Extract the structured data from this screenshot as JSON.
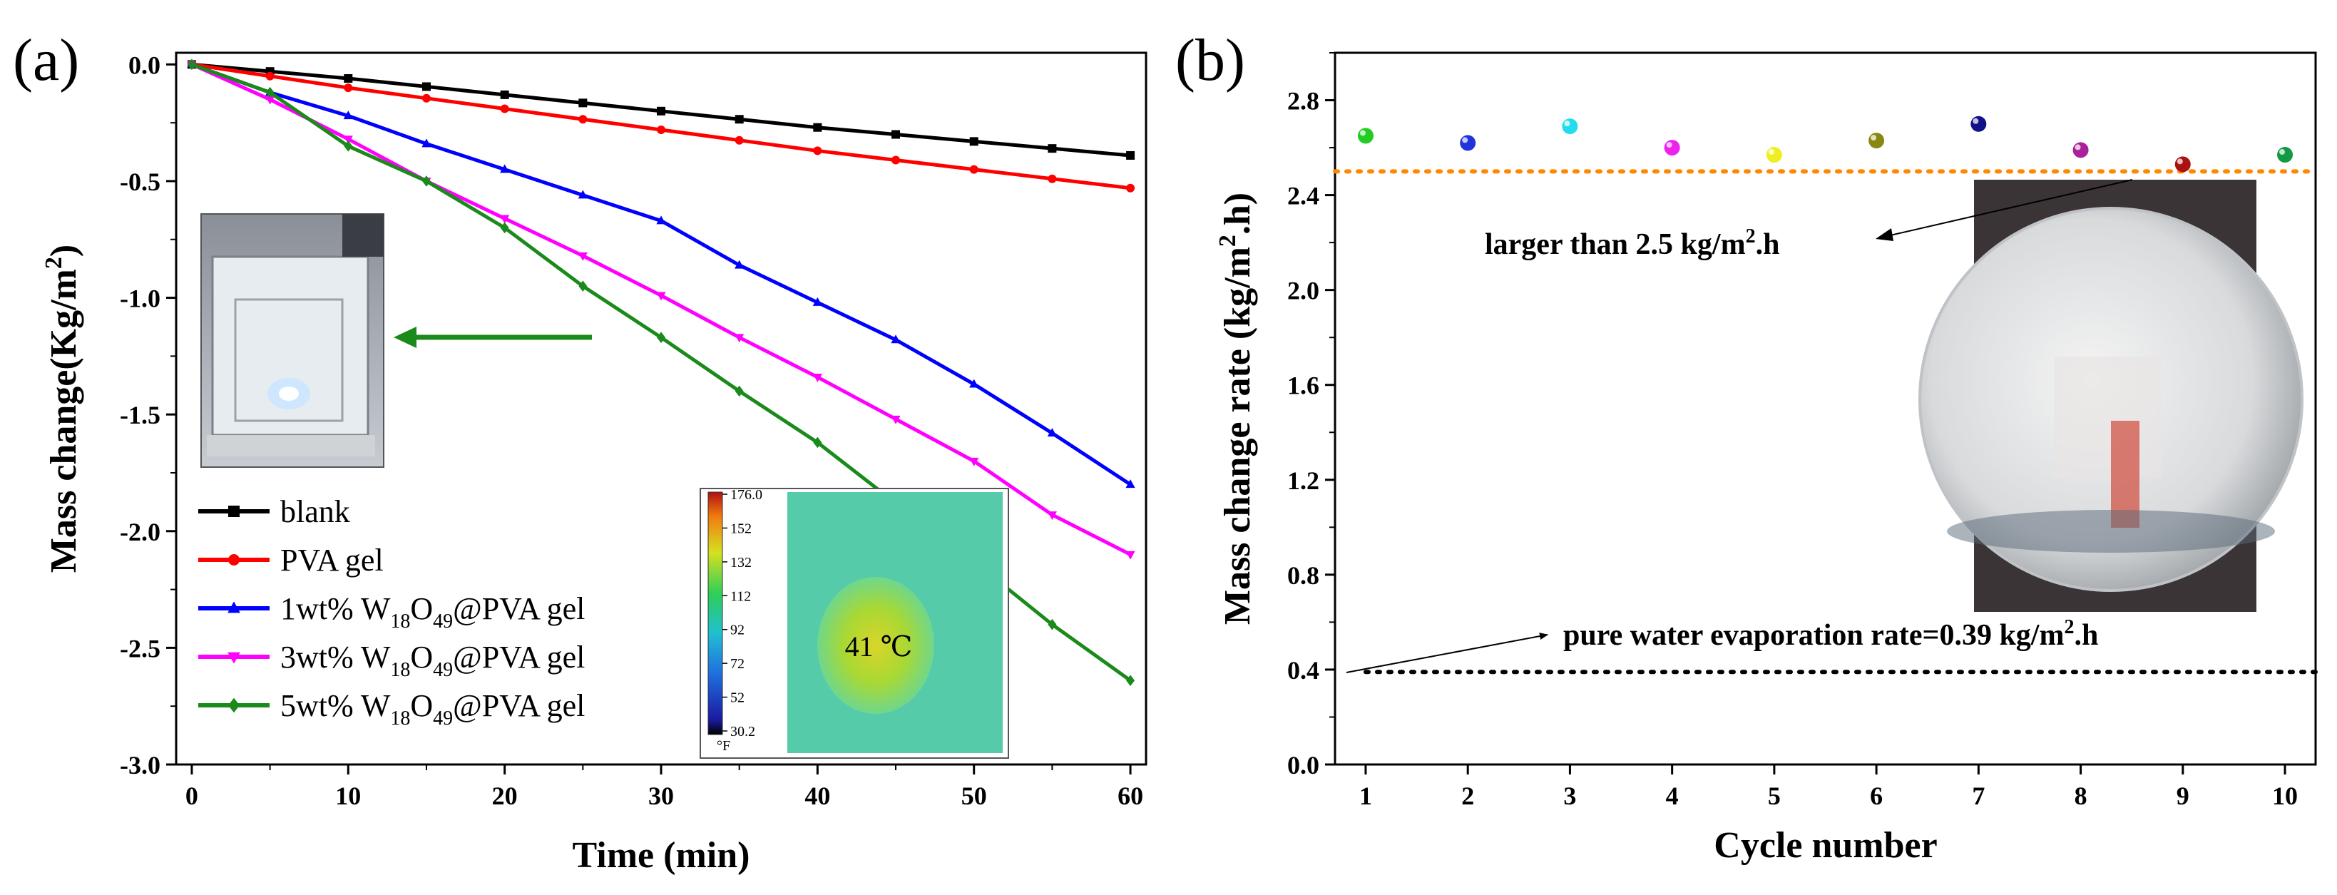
{
  "panels": {
    "a": {
      "label": "(a)",
      "xlabel": "Time (min)",
      "ylabel": "Mass change(Kg/m²)",
      "ylabel_main": "Mass change(Kg/m",
      "ylabel_sup": "2",
      "ylabel_end": ")",
      "xticks": [
        "0",
        "10",
        "20",
        "30",
        "40",
        "50",
        "60"
      ],
      "yticks": [
        "0.0",
        "-0.5",
        "-1.0",
        "-1.5",
        "-2.0",
        "-2.5",
        "-3.0"
      ],
      "legend": [
        {
          "pre": "blank",
          "sub1": "",
          "mid": "",
          "sub2": "",
          "post": ""
        },
        {
          "pre": "PVA gel",
          "sub1": "",
          "mid": "",
          "sub2": "",
          "post": ""
        },
        {
          "pre": "1wt% W",
          "sub1": "18",
          "mid": "O",
          "sub2": "49",
          "post": "@PVA gel"
        },
        {
          "pre": "3wt% W",
          "sub1": "18",
          "mid": "O",
          "sub2": "49",
          "post": "@PVA gel"
        },
        {
          "pre": "5wt% W",
          "sub1": "18",
          "mid": "O",
          "sub2": "49",
          "post": "@PVA gel"
        }
      ],
      "thermal_inset": {
        "temperature": "41 ℃",
        "colorbar_ticks": [
          "176.0",
          "152",
          "132",
          "112",
          "92",
          "72",
          "52",
          "30.2"
        ],
        "unit": "°F"
      }
    },
    "b": {
      "label": "(b)",
      "xlabel": "Cycle number",
      "ylabel": "Mass change rate (kg/m².h)",
      "ylabel_main": "Mass change rate (kg/m",
      "ylabel_sup": "2",
      "ylabel_end": ".h)",
      "xticks": [
        "1",
        "2",
        "3",
        "4",
        "5",
        "6",
        "7",
        "8",
        "9",
        "10"
      ],
      "yticks": [
        "0.0",
        "0.4",
        "0.8",
        "1.2",
        "1.6",
        "2.0",
        "2.4",
        "2.8"
      ],
      "anno_upper_main": "larger than 2.5 kg/m",
      "anno_upper_sup": "2",
      "anno_upper_end": ".h",
      "anno_lower_main": "pure water evaporation rate=0.39 kg/m",
      "anno_lower_sup": "2",
      "anno_lower_end": ".h"
    }
  },
  "chart_data": [
    {
      "type": "line",
      "xlabel": "Time (min)",
      "ylabel": "Mass change(Kg/m²)",
      "xlim": [
        -1,
        61
      ],
      "ylim": [
        -3.0,
        0.05
      ],
      "x": [
        0,
        5,
        10,
        15,
        20,
        25,
        30,
        35,
        40,
        45,
        50,
        55,
        60
      ],
      "series": [
        {
          "name": "blank",
          "color": "#000000",
          "marker": "square",
          "values": [
            0,
            -0.03,
            -0.06,
            -0.095,
            -0.13,
            -0.165,
            -0.2,
            -0.235,
            -0.27,
            -0.3,
            -0.33,
            -0.36,
            -0.39
          ]
        },
        {
          "name": "PVA gel",
          "color": "#ff0000",
          "marker": "circle",
          "values": [
            0,
            -0.05,
            -0.1,
            -0.145,
            -0.19,
            -0.235,
            -0.28,
            -0.325,
            -0.37,
            -0.41,
            -0.45,
            -0.49,
            -0.53
          ]
        },
        {
          "name": "1wt% W18O49@PVA gel",
          "color": "#0000ff",
          "marker": "triangle-up",
          "values": [
            0,
            -0.12,
            -0.22,
            -0.34,
            -0.45,
            -0.56,
            -0.67,
            -0.86,
            -1.02,
            -1.18,
            -1.37,
            -1.58,
            -1.8
          ]
        },
        {
          "name": "3wt% W18O49@PVA gel",
          "color": "#ff00ff",
          "marker": "triangle-down",
          "values": [
            0,
            -0.15,
            -0.32,
            -0.5,
            -0.66,
            -0.82,
            -0.99,
            -1.17,
            -1.34,
            -1.52,
            -1.7,
            -1.93,
            -2.1
          ]
        },
        {
          "name": "5wt% W18O49@PVA gel",
          "color": "#1a8a1a",
          "marker": "diamond",
          "values": [
            0,
            -0.12,
            -0.35,
            -0.5,
            -0.7,
            -0.95,
            -1.17,
            -1.4,
            -1.62,
            -1.88,
            -2.13,
            -2.4,
            -2.64
          ]
        }
      ]
    },
    {
      "type": "scatter",
      "xlabel": "Cycle number",
      "ylabel": "Mass change rate (kg/m².h)",
      "xlim": [
        0.7,
        10.3
      ],
      "ylim": [
        0.0,
        3.0
      ],
      "x": [
        1,
        2,
        3,
        4,
        5,
        6,
        7,
        8,
        9,
        10
      ],
      "values": [
        2.65,
        2.62,
        2.69,
        2.6,
        2.57,
        2.63,
        2.7,
        2.59,
        2.53,
        2.57
      ],
      "point_colors": [
        "#22cc22",
        "#2233dd",
        "#22ddee",
        "#ee22ee",
        "#eeee22",
        "#888811",
        "#111188",
        "#aa2299",
        "#aa1111",
        "#119944"
      ],
      "reference_lines": [
        {
          "y": 2.5,
          "color": "#ff8800",
          "style": "dotted"
        },
        {
          "y": 0.39,
          "color": "#000000",
          "style": "dotted"
        }
      ]
    }
  ]
}
